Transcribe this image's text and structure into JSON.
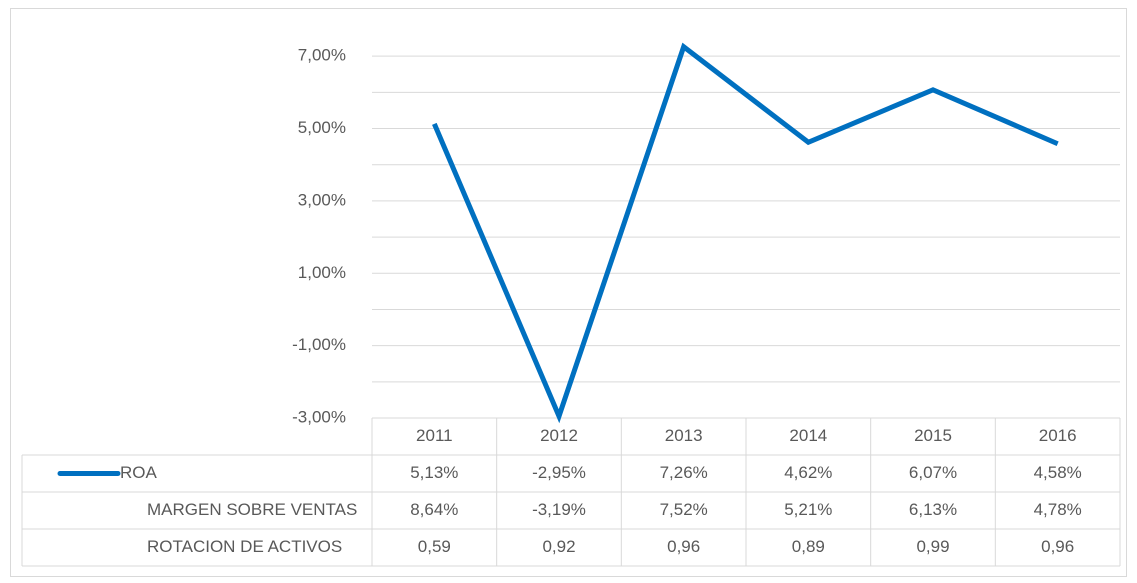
{
  "chart_data": {
    "type": "line",
    "categories": [
      "2011",
      "2012",
      "2013",
      "2014",
      "2015",
      "2016"
    ],
    "series": [
      {
        "name": "ROA",
        "color": "#0070c0",
        "values": [
          5.13,
          -2.95,
          7.26,
          4.62,
          6.07,
          4.58
        ],
        "value_labels": [
          "5,13%",
          "-2,95%",
          "7,26%",
          "4,62%",
          "6,07%",
          "4,58%"
        ]
      },
      {
        "name": "MARGEN SOBRE VENTAS",
        "values": [
          8.64,
          -3.19,
          7.52,
          5.21,
          6.13,
          4.78
        ],
        "value_labels": [
          "8,64%",
          "-3,19%",
          "7,52%",
          "5,21%",
          "6,13%",
          "4,78%"
        ],
        "plotted": false
      },
      {
        "name": "ROTACION DE ACTIVOS",
        "values": [
          0.59,
          0.92,
          0.96,
          0.89,
          0.99,
          0.96
        ],
        "value_labels": [
          "0,59",
          "0,92",
          "0,96",
          "0,89",
          "0,99",
          "0,96"
        ],
        "plotted": false
      }
    ],
    "ylim": [
      -3,
      8
    ],
    "yticks": [
      {
        "value": -3,
        "label": "-3,00%"
      },
      {
        "value": -1,
        "label": "-1,00%"
      },
      {
        "value": 1,
        "label": "1,00%"
      },
      {
        "value": 3,
        "label": "3,00%"
      },
      {
        "value": 5,
        "label": "5,00%"
      },
      {
        "value": 7,
        "label": "7,00%"
      }
    ],
    "minor_yticks": [
      -2,
      0,
      2,
      4,
      6
    ],
    "grid": true,
    "data_table": true
  }
}
